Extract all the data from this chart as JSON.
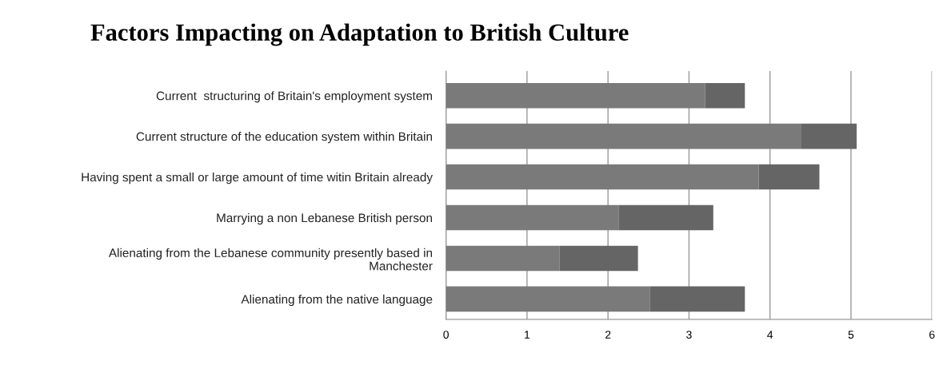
{
  "chart_data": {
    "type": "bar",
    "orientation": "horizontal",
    "stacked": true,
    "title": "Factors Impacting on Adaptation to British Culture",
    "categories": [
      "Current  structuring of Britain's employment system",
      "Current structure of the education system within Britain",
      "Having spent a small or large amount of time witin Britain already",
      "Marrying a non Lebanese British person",
      "Alienating from the Lebanese community presently based in\nManchester",
      "Alienating from the native language"
    ],
    "series": [
      {
        "color": "#7a7a7a",
        "values": [
          3.2,
          4.38,
          3.86,
          2.13,
          1.4,
          2.52
        ]
      },
      {
        "color": "#656565",
        "values": [
          0.49,
          0.69,
          0.75,
          1.17,
          0.97,
          1.17
        ]
      }
    ],
    "xlim": [
      0,
      6
    ],
    "xticks": [
      0,
      1,
      2,
      3,
      4,
      5,
      6
    ],
    "grid": "x"
  }
}
